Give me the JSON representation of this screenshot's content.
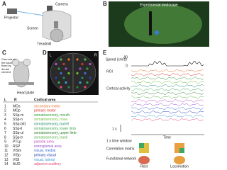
{
  "panels": {
    "a": {
      "label": "A",
      "projector": "Projector",
      "camera": "Camera",
      "screen": "Screen",
      "treadmill": "Treadmill"
    },
    "b": {
      "label": "B",
      "title": "Experimental landscape"
    },
    "c": {
      "label": "C",
      "cannula": "Cannula on the skull fixed by dental cement",
      "head_plate": "Head plate"
    },
    "d": {
      "label": "D",
      "left": "L",
      "right": "R",
      "header": "Cortical area",
      "areas": [
        {
          "index": "1",
          "abbr": "MOs",
          "name": "secondary motor",
          "color": "#e8732a"
        },
        {
          "index": "2",
          "abbr": "MOp",
          "name": "primary motor",
          "color": "#d8312b"
        },
        {
          "index": "3",
          "abbr": "SSp-m",
          "name": "somatosensory, mouth",
          "color": "#2f9a3c"
        },
        {
          "index": "4",
          "abbr": "SSp-n",
          "name": "somatosensory, nose",
          "color": "#6cbf3a"
        },
        {
          "index": "5",
          "abbr": "SSp-bfd",
          "name": "somatosensory, barrel",
          "color": "#1f8a6a"
        },
        {
          "index": "6",
          "abbr": "SSp-ll",
          "name": "somatosensory, lower limb",
          "color": "#3aa64f"
        },
        {
          "index": "7",
          "abbr": "SSp-ul",
          "name": "somatosensory, upper limb",
          "color": "#2d7f2d"
        },
        {
          "index": "8",
          "abbr": "SSp-tr",
          "name": "somatosensory, trunk",
          "color": "#55b04a"
        },
        {
          "index": "9",
          "abbr": "PTLp",
          "name": "parietal area",
          "color": "#c04fc0"
        },
        {
          "index": "10",
          "abbr": "RSP",
          "name": "retrosplenial area",
          "color": "#9a4fd0"
        },
        {
          "index": "11",
          "abbr": "VISm",
          "name": "visual, medial",
          "color": "#3f6fd8"
        },
        {
          "index": "12",
          "abbr": "VISp",
          "name": "primary visual",
          "color": "#2340b0"
        },
        {
          "index": "13",
          "abbr": "VISl",
          "name": "visual, lateral",
          "color": "#3a9ad8"
        },
        {
          "index": "14",
          "abbr": "AUD",
          "name": "adjacent auditory",
          "color": "#e04a7a"
        }
      ]
    },
    "e": {
      "label": "E",
      "speed": "Speed (cm/s)",
      "speed_max": "80",
      "speed_min": "0",
      "roi": "ROI",
      "activity": "Cortical activity",
      "scale_time": "1 s",
      "time": "Time",
      "window": "1 x time window",
      "correlation": "Correlation matrix",
      "network": "Functional network",
      "rest": "Rest",
      "locomotion": "Locomotion"
    }
  }
}
